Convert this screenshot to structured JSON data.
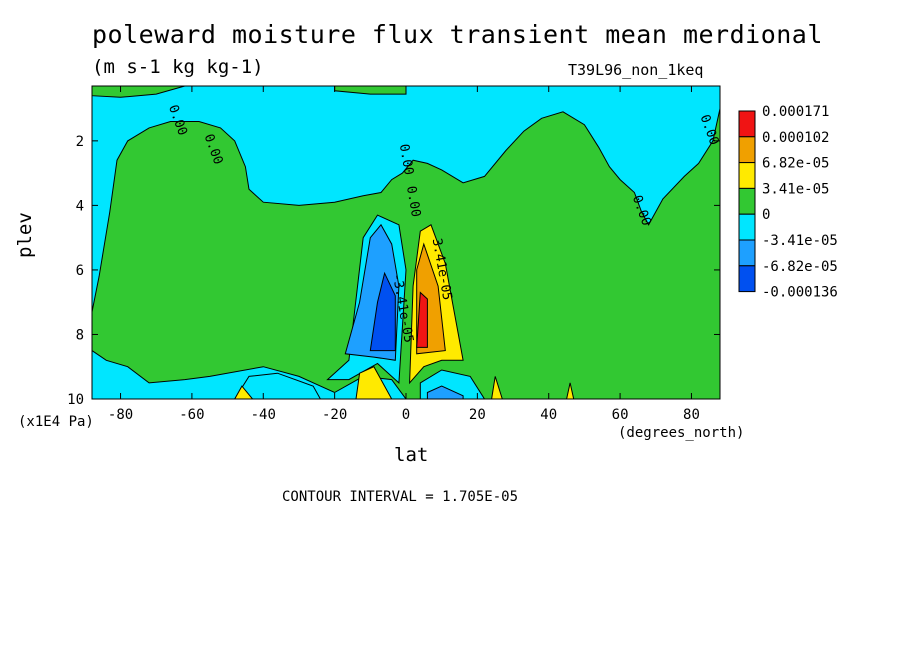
{
  "title": "poleward moisture flux transient mean merdional",
  "units": "(m s-1 kg kg-1)",
  "run_label": "T39L96_non_1keq",
  "ylabel": "plev",
  "yunits": "(x1E4 Pa)",
  "xlabel": "lat",
  "xunits": "(degrees_north)",
  "contour_interval": "CONTOUR INTERVAL = 1.705E-05",
  "chart_data": {
    "type": "heatmap",
    "title": "poleward moisture flux transient mean merdional",
    "xlabel": "lat",
    "ylabel": "plev",
    "xlim": [
      -88,
      88
    ],
    "ylim": [
      10,
      0.3
    ],
    "x_ticks": [
      -80,
      -60,
      -40,
      -20,
      0,
      20,
      40,
      60,
      80
    ],
    "x_tick_labels": [
      "-80",
      "-60",
      "-40",
      "-20",
      "0",
      "20",
      "40",
      "60",
      "80"
    ],
    "y_ticks": [
      2,
      4,
      6,
      8,
      10
    ],
    "y_tick_labels": [
      "2",
      "4",
      "6",
      "8",
      "10"
    ],
    "colorbar": {
      "labels": [
        "0.000171",
        "0.000102",
        "6.82e-05",
        "3.41e-05",
        "0",
        "-3.41e-05",
        "-6.82e-05",
        "-0.000136"
      ],
      "colors": [
        "#f01414",
        "#f0a000",
        "#ffea00",
        "#32c832",
        "#00e6ff",
        "#1ea0ff",
        "#0050f0"
      ]
    },
    "contour_labels": [
      {
        "text": "0.00",
        "lat": -65,
        "plev": 1.4
      },
      {
        "text": "0.00",
        "lat": -55,
        "plev": 2.3
      },
      {
        "text": "0.00",
        "lat": -1,
        "plev": 2.6
      },
      {
        "text": "0.00",
        "lat": 1,
        "plev": 3.9
      },
      {
        "text": "0.00",
        "lat": 65,
        "plev": 4.2
      },
      {
        "text": "0.00",
        "lat": 84,
        "plev": 1.7
      },
      {
        "text": "3.41e-05",
        "lat": 9,
        "plev": 6.0
      },
      {
        "text": "-3.41e-05",
        "lat": -2,
        "plev": 7.2
      }
    ],
    "regions": [
      {
        "value_class": "0 to 3.41e-05",
        "color": "#32c832",
        "polygon": [
          [
            -88,
            7.3
          ],
          [
            -86,
            6.2
          ],
          [
            -83,
            4.2
          ],
          [
            -81,
            2.6
          ],
          [
            -78,
            2.0
          ],
          [
            -72,
            1.6
          ],
          [
            -66,
            1.4
          ],
          [
            -58,
            1.4
          ],
          [
            -52,
            1.6
          ],
          [
            -48,
            2.0
          ],
          [
            -45,
            2.8
          ],
          [
            -44,
            3.5
          ],
          [
            -40,
            3.9
          ],
          [
            -30,
            4.0
          ],
          [
            -20,
            3.9
          ],
          [
            -12,
            3.7
          ],
          [
            -7,
            3.6
          ],
          [
            -4,
            3.2
          ],
          [
            -1,
            3.0
          ],
          [
            2,
            2.6
          ],
          [
            6,
            2.7
          ],
          [
            10,
            2.9
          ],
          [
            16,
            3.3
          ],
          [
            22,
            3.1
          ],
          [
            28,
            2.3
          ],
          [
            33,
            1.7
          ],
          [
            38,
            1.3
          ],
          [
            44,
            1.1
          ],
          [
            50,
            1.5
          ],
          [
            54,
            2.2
          ],
          [
            57,
            2.8
          ],
          [
            60,
            3.2
          ],
          [
            64,
            3.6
          ],
          [
            66,
            4.2
          ],
          [
            68,
            4.6
          ],
          [
            72,
            3.8
          ],
          [
            78,
            3.1
          ],
          [
            82,
            2.7
          ],
          [
            86,
            2.0
          ],
          [
            88,
            1.0
          ],
          [
            88,
            10
          ],
          [
            0,
            10
          ],
          [
            -4,
            9.4
          ],
          [
            -12,
            9.3
          ],
          [
            -20,
            9.8
          ],
          [
            -30,
            9.3
          ],
          [
            -40,
            9.0
          ],
          [
            -55,
            9.3
          ],
          [
            -62,
            9.4
          ],
          [
            -72,
            9.5
          ],
          [
            -78,
            9.0
          ],
          [
            -84,
            8.8
          ],
          [
            -88,
            8.5
          ]
        ]
      },
      {
        "value_class": "0 to 3.41e-05",
        "color": "#32c832",
        "polygon": [
          [
            -20,
            0.3
          ],
          [
            0,
            0.3
          ],
          [
            0,
            0.55
          ],
          [
            -10,
            0.55
          ],
          [
            -20,
            0.45
          ]
        ]
      },
      {
        "value_class": "0 to 3.41e-05",
        "color": "#32c832",
        "polygon": [
          [
            -88,
            0.3
          ],
          [
            -62,
            0.3
          ],
          [
            -70,
            0.55
          ],
          [
            -80,
            0.65
          ],
          [
            -88,
            0.6
          ]
        ]
      },
      {
        "value_class": "-3.41e-05 to 0",
        "color": "#00e6ff",
        "polygon": [
          [
            -22,
            9.4
          ],
          [
            -16,
            8.8
          ],
          [
            -12,
            5.0
          ],
          [
            -8,
            4.3
          ],
          [
            -2,
            4.6
          ],
          [
            0,
            6.0
          ],
          [
            -2,
            9.5
          ],
          [
            -8,
            8.9
          ],
          [
            -16,
            9.4
          ]
        ]
      },
      {
        "value_class": "-3.41e-05 to 0",
        "color": "#00e6ff",
        "polygon": [
          [
            4,
            9.5
          ],
          [
            10,
            9.1
          ],
          [
            18,
            9.3
          ],
          [
            22,
            10
          ],
          [
            4,
            10
          ]
        ]
      },
      {
        "value_class": "-3.41e-05 to 0",
        "color": "#00e6ff",
        "polygon": [
          [
            -48,
            10
          ],
          [
            -44,
            9.3
          ],
          [
            -36,
            9.2
          ],
          [
            -26,
            9.6
          ],
          [
            -24,
            10
          ]
        ]
      },
      {
        "value_class": "-6.82e-05 to -3.41e-05",
        "color": "#1ea0ff",
        "polygon": [
          [
            -17,
            8.6
          ],
          [
            -13,
            7.0
          ],
          [
            -10,
            5.0
          ],
          [
            -7,
            4.6
          ],
          [
            -4,
            5.2
          ],
          [
            -2,
            6.5
          ],
          [
            -3,
            8.8
          ],
          [
            -9,
            8.7
          ]
        ]
      },
      {
        "value_class": "-6.82e-05 to -3.41e-05",
        "color": "#1ea0ff",
        "polygon": [
          [
            6,
            9.8
          ],
          [
            10,
            9.6
          ],
          [
            16,
            9.9
          ],
          [
            16,
            10
          ],
          [
            6,
            10
          ]
        ]
      },
      {
        "value_class": "-0.000136 to -6.82e-05",
        "color": "#0050f0",
        "polygon": [
          [
            -10,
            8.5
          ],
          [
            -8,
            7.0
          ],
          [
            -6,
            6.1
          ],
          [
            -3,
            6.8
          ],
          [
            -3,
            8.5
          ]
        ]
      },
      {
        "value_class": "3.41e-05 to 6.82e-05",
        "color": "#ffea00",
        "polygon": [
          [
            1,
            9.5
          ],
          [
            2,
            6.5
          ],
          [
            4,
            4.8
          ],
          [
            7,
            4.6
          ],
          [
            11,
            5.8
          ],
          [
            14,
            7.6
          ],
          [
            16,
            8.8
          ],
          [
            10,
            8.8
          ],
          [
            5,
            9.0
          ]
        ]
      },
      {
        "value_class": "3.41e-05 to 6.82e-05",
        "color": "#ffea00",
        "polygon": [
          [
            -14,
            10
          ],
          [
            -13,
            9.2
          ],
          [
            -9,
            9.0
          ],
          [
            -6,
            9.6
          ],
          [
            -4,
            10
          ]
        ]
      },
      {
        "value_class": "3.41e-05 to 6.82e-05",
        "color": "#ffea00",
        "polygon": [
          [
            24,
            10
          ],
          [
            25,
            9.3
          ],
          [
            27,
            10
          ]
        ]
      },
      {
        "value_class": "3.41e-05 to 6.82e-05",
        "color": "#ffea00",
        "polygon": [
          [
            -48,
            10
          ],
          [
            -46,
            9.6
          ],
          [
            -43,
            10
          ]
        ]
      },
      {
        "value_class": "3.41e-05 to 6.82e-05",
        "color": "#ffea00",
        "polygon": [
          [
            45,
            10
          ],
          [
            46,
            9.5
          ],
          [
            47,
            10
          ]
        ]
      },
      {
        "value_class": "6.82e-05 to 0.000102",
        "color": "#f0a000",
        "polygon": [
          [
            3,
            8.6
          ],
          [
            3,
            6.0
          ],
          [
            5,
            5.2
          ],
          [
            9,
            6.5
          ],
          [
            11,
            8.5
          ]
        ]
      },
      {
        "value_class": "0.000102 to 0.000171",
        "color": "#f01414",
        "polygon": [
          [
            3,
            8.4
          ],
          [
            4,
            6.7
          ],
          [
            6,
            6.9
          ],
          [
            6,
            8.4
          ]
        ]
      }
    ]
  }
}
